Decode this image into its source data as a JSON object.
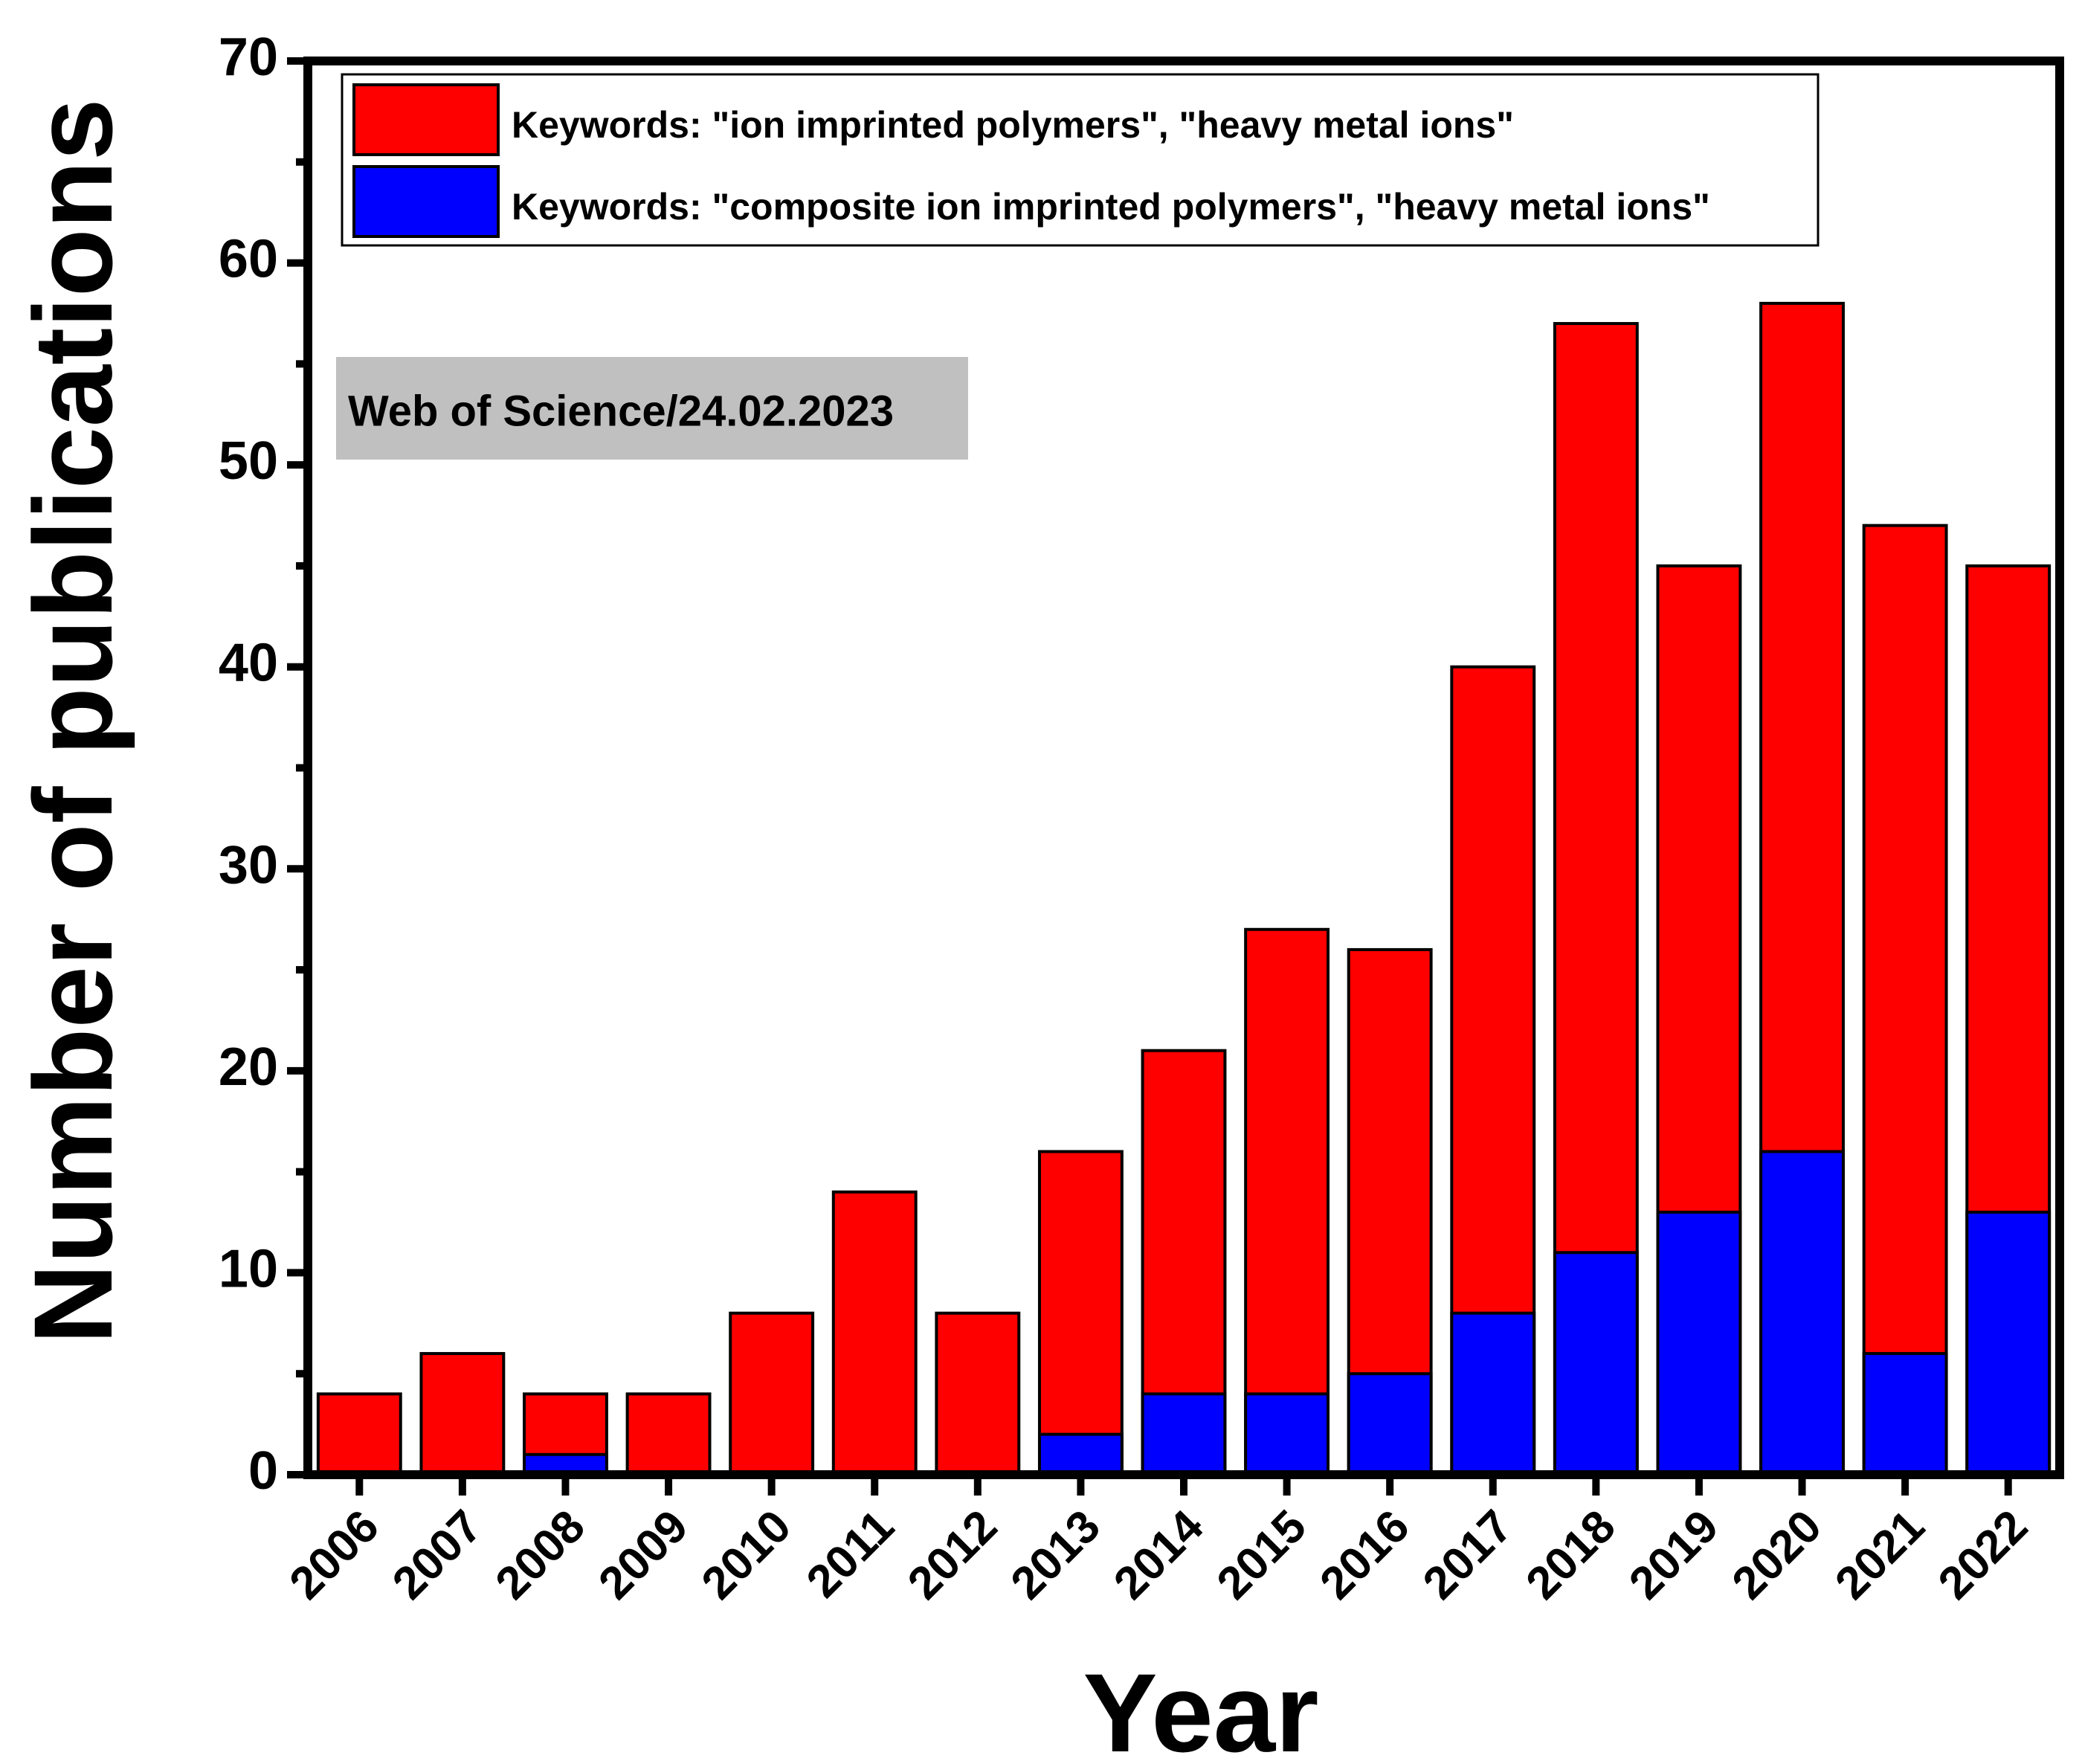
{
  "chart_data": {
    "type": "bar",
    "stacked": true,
    "xlabel": "Year",
    "ylabel": "Number of publications",
    "ylim": [
      0,
      70
    ],
    "yticks": [
      0,
      10,
      20,
      30,
      40,
      50,
      60,
      70
    ],
    "grid": false,
    "legend_position": "top",
    "categories": [
      "2006",
      "2007",
      "2008",
      "2009",
      "2010",
      "2011",
      "2012",
      "2013",
      "2014",
      "2015",
      "2016",
      "2017",
      "2018",
      "2019",
      "2020",
      "2021",
      "2022"
    ],
    "series": [
      {
        "name": "Keywords: \"ion imprinted polymers\", \"heavy metal ions\"",
        "color": "#ff0000",
        "values": [
          4,
          6,
          4,
          4,
          8,
          14,
          8,
          16,
          21,
          27,
          26,
          40,
          57,
          45,
          58,
          47,
          45
        ]
      },
      {
        "name": "Keywords: \"composite ion imprinted polymers\", \"heavy metal ions\"",
        "color": "#0000ff",
        "values": [
          0,
          0,
          1,
          0,
          0,
          0,
          0,
          2,
          4,
          4,
          5,
          8,
          11,
          13,
          16,
          6,
          13
        ]
      }
    ],
    "annotation": "Web of Science/24.02.2023"
  }
}
